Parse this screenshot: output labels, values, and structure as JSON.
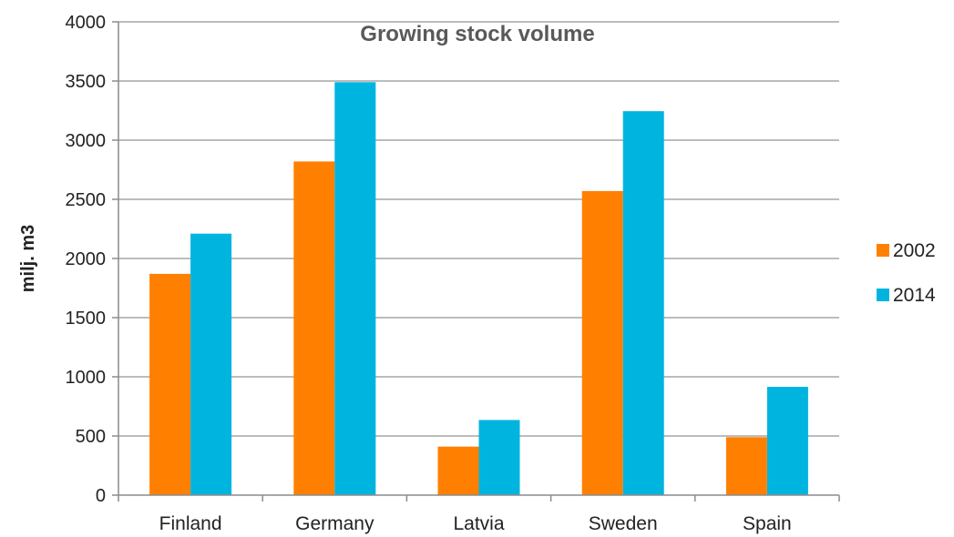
{
  "chart_data": {
    "type": "bar",
    "title": "Growing stock volume",
    "xlabel": "",
    "ylabel": "milj. m3",
    "categories": [
      "Finland",
      "Germany",
      "Latvia",
      "Sweden",
      "Spain"
    ],
    "series": [
      {
        "name": "2002",
        "values": [
          1870,
          2820,
          410,
          2570,
          490
        ],
        "color": "#ff8000"
      },
      {
        "name": "2014",
        "values": [
          2210,
          3490,
          635,
          3245,
          915
        ],
        "color": "#00b4e0"
      }
    ],
    "ylim": [
      0,
      4000
    ],
    "yticks": [
      0,
      500,
      1000,
      1500,
      2000,
      2500,
      3000,
      3500,
      4000
    ],
    "grid": true,
    "legend_position": "right",
    "gridline_color": "#a6a6a6",
    "axis_color": "#8c8c8c"
  }
}
